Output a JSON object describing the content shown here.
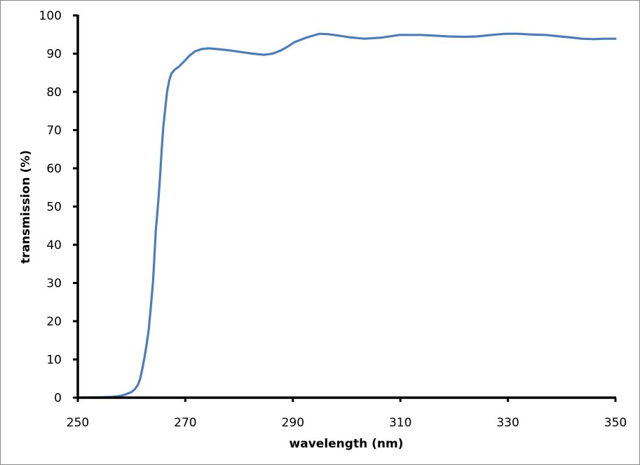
{
  "chart_data": {
    "type": "line",
    "title": "",
    "xlabel": "wavelength (nm)",
    "ylabel": "transmission (%)",
    "xlim": [
      250,
      350
    ],
    "ylim": [
      0,
      100
    ],
    "x_ticks": [
      250,
      270,
      290,
      310,
      330,
      350
    ],
    "y_ticks": [
      0,
      10,
      20,
      30,
      40,
      50,
      60,
      70,
      80,
      90,
      100
    ],
    "grid": false,
    "legend": null,
    "series": [
      {
        "name": "transmission",
        "color": "#4a7ebb",
        "x": [
          250,
          254,
          256.4,
          258,
          259,
          260,
          260.6,
          261.2,
          261.6,
          262,
          262.4,
          262.8,
          263.2,
          263.6,
          264,
          264.5,
          265,
          265.3,
          265.6,
          265.9,
          266.3,
          266.6,
          267,
          267.4,
          268,
          268.8,
          269.8,
          270.7,
          271.8,
          273,
          274.3,
          275.9,
          278,
          280,
          282.5,
          284.7,
          286.2,
          287.7,
          289,
          290.3,
          292.5,
          294.9,
          296.5,
          298.1,
          300.5,
          303.3,
          306.5,
          309.8,
          313.8,
          316.5,
          319,
          322,
          324.2,
          327,
          329.4,
          332,
          334.6,
          337,
          339.8,
          342,
          343.7,
          346,
          348,
          350
        ],
        "y": [
          0,
          0.1,
          0.2,
          0.5,
          0.9,
          1.5,
          2.2,
          3.4,
          5.0,
          7.5,
          10.5,
          14,
          17.8,
          24,
          30.6,
          43.5,
          52,
          58,
          65,
          71,
          76,
          80,
          83,
          84.8,
          85.8,
          86.6,
          88,
          89.4,
          90.6,
          91.2,
          91.4,
          91.2,
          90.9,
          90.5,
          90.0,
          89.7,
          90.0,
          90.8,
          91.8,
          93.0,
          94.2,
          95.2,
          95.1,
          94.8,
          94.3,
          93.9,
          94.2,
          94.9,
          94.9,
          94.7,
          94.5,
          94.4,
          94.5,
          94.9,
          95.2,
          95.2,
          95.0,
          94.9,
          94.5,
          94.2,
          93.9,
          93.8,
          93.9,
          93.9
        ]
      }
    ]
  }
}
